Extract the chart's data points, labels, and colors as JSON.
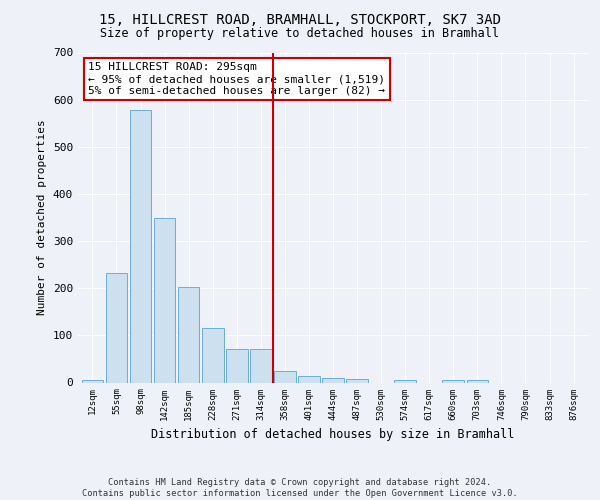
{
  "title1": "15, HILLCREST ROAD, BRAMHALL, STOCKPORT, SK7 3AD",
  "title2": "Size of property relative to detached houses in Bramhall",
  "xlabel": "Distribution of detached houses by size in Bramhall",
  "ylabel": "Number of detached properties",
  "bar_labels": [
    "12sqm",
    "55sqm",
    "98sqm",
    "142sqm",
    "185sqm",
    "228sqm",
    "271sqm",
    "314sqm",
    "358sqm",
    "401sqm",
    "444sqm",
    "487sqm",
    "530sqm",
    "574sqm",
    "617sqm",
    "660sqm",
    "703sqm",
    "746sqm",
    "790sqm",
    "833sqm",
    "876sqm"
  ],
  "bar_values": [
    5,
    233,
    578,
    350,
    202,
    115,
    72,
    72,
    25,
    13,
    10,
    8,
    0,
    5,
    0,
    6,
    6,
    0,
    0,
    0,
    0
  ],
  "bar_color": "#cce0f0",
  "bar_edge_color": "#6aaed6",
  "vline_x": 7.5,
  "vline_color": "#cc0000",
  "annotation_box_text": "15 HILLCREST ROAD: 295sqm\n← 95% of detached houses are smaller (1,519)\n5% of semi-detached houses are larger (82) →",
  "ylim": [
    0,
    700
  ],
  "yticks": [
    0,
    100,
    200,
    300,
    400,
    500,
    600,
    700
  ],
  "footnote": "Contains HM Land Registry data © Crown copyright and database right 2024.\nContains public sector information licensed under the Open Government Licence v3.0.",
  "bg_color": "#eef2f8",
  "plot_bg_color": "#eef2f8"
}
